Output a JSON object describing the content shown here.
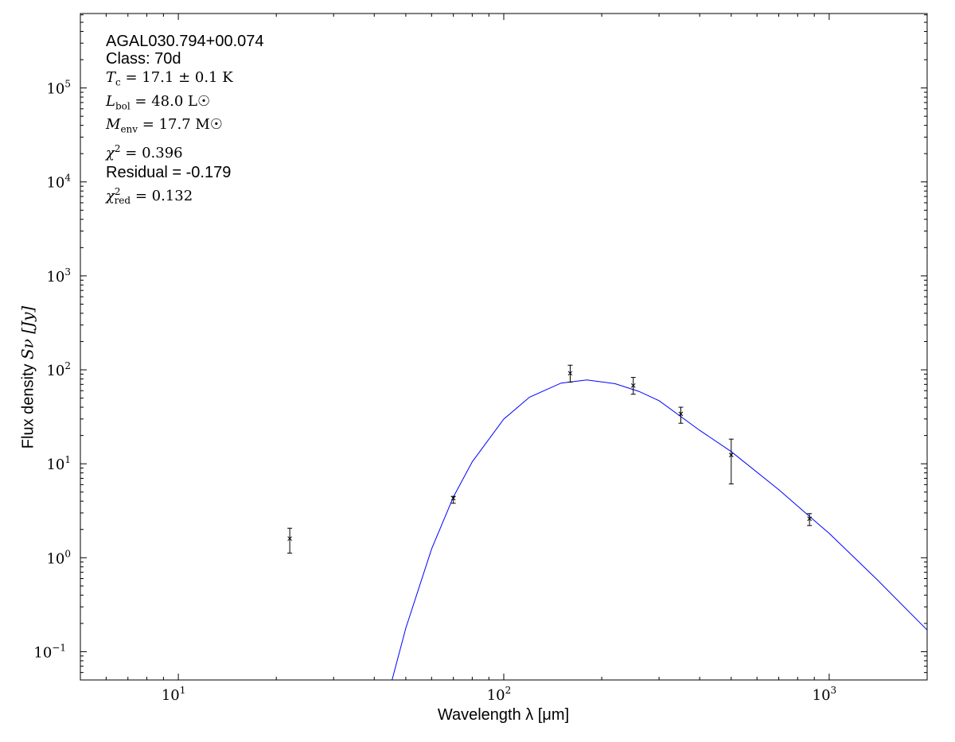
{
  "chart_data": {
    "type": "scatter",
    "xlabel": "Wavelength λ [μm]",
    "ylabel_prefix": "Flux density ",
    "ylabel_symbol": "Sν [Jy]",
    "xscale": "log",
    "yscale": "log",
    "xlim": [
      5,
      2000
    ],
    "ylim": [
      0.05,
      620000
    ],
    "grid": false,
    "x_ticks": [
      10,
      100,
      1000
    ],
    "x_tick_labels": [
      {
        "base": "10",
        "exp": "1"
      },
      {
        "base": "10",
        "exp": "2"
      },
      {
        "base": "10",
        "exp": "3"
      }
    ],
    "y_ticks": [
      0.1,
      1,
      10,
      100,
      1000,
      10000,
      100000
    ],
    "y_tick_labels": [
      {
        "base": "10",
        "exp": "−1"
      },
      {
        "base": "10",
        "exp": "0"
      },
      {
        "base": "10",
        "exp": "1"
      },
      {
        "base": "10",
        "exp": "2"
      },
      {
        "base": "10",
        "exp": "3"
      },
      {
        "base": "10",
        "exp": "4"
      },
      {
        "base": "10",
        "exp": "5"
      }
    ],
    "points": [
      {
        "x": 22,
        "y": 1.6,
        "ylo": 1.12,
        "yhi": 2.06
      },
      {
        "x": 70,
        "y": 4.3,
        "ylo": 3.8,
        "yhi": 4.5
      },
      {
        "x": 160,
        "y": 92,
        "ylo": 74,
        "yhi": 112
      },
      {
        "x": 250,
        "y": 68,
        "ylo": 55,
        "yhi": 83
      },
      {
        "x": 350,
        "y": 34,
        "ylo": 27,
        "yhi": 40
      },
      {
        "x": 500,
        "y": 12.4,
        "ylo": 6.1,
        "yhi": 18.3
      },
      {
        "x": 870,
        "y": 2.6,
        "ylo": 2.2,
        "yhi": 2.95
      }
    ],
    "model_curve": {
      "color": "#0000ff",
      "x": [
        45,
        50,
        60,
        70,
        80,
        100,
        120,
        150,
        180,
        220,
        260,
        300,
        400,
        500,
        700,
        870,
        1000,
        1400,
        2000
      ],
      "y": [
        0.045,
        0.178,
        1.24,
        4.43,
        10.5,
        29.9,
        51.2,
        72.2,
        78,
        71.1,
        59,
        47,
        22.7,
        13.5,
        5.3,
        2.75,
        1.82,
        0.59,
        0.17
      ]
    },
    "annotations": {
      "source": "AGAL030.794+00.074",
      "class": "Class: 70d",
      "tc": "17.1 ± 0.1 K",
      "lbol": "48.0 L☉",
      "menv": "17.7 M☉",
      "chi2": "0.396",
      "residual": "Residual = -0.179",
      "chi2red": "0.132"
    }
  }
}
